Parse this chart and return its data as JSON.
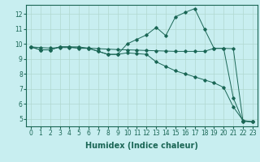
{
  "xlabel": "Humidex (Indice chaleur)",
  "bg_color": "#c8eef0",
  "grid_color": "#b0d8d0",
  "line_color": "#1a6655",
  "xlim": [
    -0.5,
    23.5
  ],
  "ylim": [
    4.5,
    12.6
  ],
  "yticks": [
    5,
    6,
    7,
    8,
    9,
    10,
    11,
    12
  ],
  "xticks": [
    0,
    1,
    2,
    3,
    4,
    5,
    6,
    7,
    8,
    9,
    10,
    11,
    12,
    13,
    14,
    15,
    16,
    17,
    18,
    19,
    20,
    21,
    22,
    23
  ],
  "series1_x": [
    0,
    1,
    2,
    3,
    4,
    5,
    6,
    7,
    8,
    9,
    10,
    11,
    12,
    13,
    14,
    15,
    16,
    17,
    18,
    19,
    20,
    21,
    22,
    23
  ],
  "series1_y": [
    9.8,
    9.6,
    9.6,
    9.8,
    9.8,
    9.8,
    9.7,
    9.5,
    9.3,
    9.3,
    9.4,
    9.35,
    9.3,
    8.8,
    8.5,
    8.2,
    8.0,
    7.8,
    7.6,
    7.4,
    7.1,
    5.8,
    4.9,
    4.8
  ],
  "series2_x": [
    0,
    1,
    2,
    3,
    4,
    5,
    6,
    7,
    8,
    9,
    10,
    11,
    12,
    13,
    14,
    15,
    16,
    17,
    18,
    19,
    20,
    21,
    22,
    23
  ],
  "series2_y": [
    9.8,
    9.6,
    9.6,
    9.8,
    9.8,
    9.7,
    9.7,
    9.5,
    9.3,
    9.3,
    10.0,
    10.3,
    10.6,
    11.1,
    10.55,
    11.8,
    12.1,
    12.35,
    11.0,
    9.7,
    9.7,
    6.4,
    4.85,
    4.8
  ],
  "series3_x": [
    0,
    1,
    2,
    3,
    4,
    5,
    6,
    7,
    8,
    9,
    10,
    11,
    12,
    13,
    14,
    15,
    16,
    17,
    18,
    19,
    20,
    21,
    22,
    23
  ],
  "series3_y": [
    9.8,
    9.75,
    9.72,
    9.75,
    9.75,
    9.73,
    9.72,
    9.68,
    9.65,
    9.62,
    9.6,
    9.58,
    9.56,
    9.54,
    9.52,
    9.5,
    9.5,
    9.5,
    9.5,
    9.7,
    9.7,
    9.68,
    4.85,
    4.8
  ],
  "figsize": [
    3.2,
    2.0
  ],
  "dpi": 100,
  "tick_fontsize": 5.5,
  "label_fontsize": 7
}
